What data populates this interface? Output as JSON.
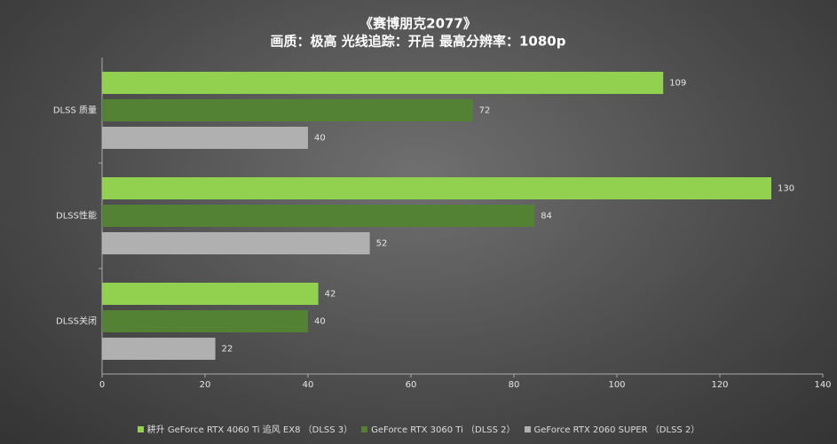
{
  "chart_data": {
    "type": "barh",
    "title": "《赛博朋克2077》",
    "subtitle": "画质：极高  光线追踪：开启  最高分辨率：1080p",
    "categories": [
      "DLSS 质量",
      "DLSS性能",
      "DLSS关闭"
    ],
    "series": [
      {
        "name": "耕升 GeForce RTX 4060 Ti 追风 EX8 （DLSS 3）",
        "color": "#92d050",
        "values": [
          109,
          130,
          42
        ]
      },
      {
        "name": "GeForce RTX 3060 Ti （DLSS 2）",
        "color": "#548235",
        "values": [
          72,
          84,
          40
        ]
      },
      {
        "name": "GeForce RTX 2060 SUPER （DLSS 2）",
        "color": "#b0b0b0",
        "values": [
          40,
          52,
          22
        ]
      }
    ],
    "xlim": [
      0,
      140
    ],
    "xticks": [
      0,
      20,
      40,
      60,
      80,
      100,
      120,
      140
    ],
    "legend": "bottom"
  }
}
